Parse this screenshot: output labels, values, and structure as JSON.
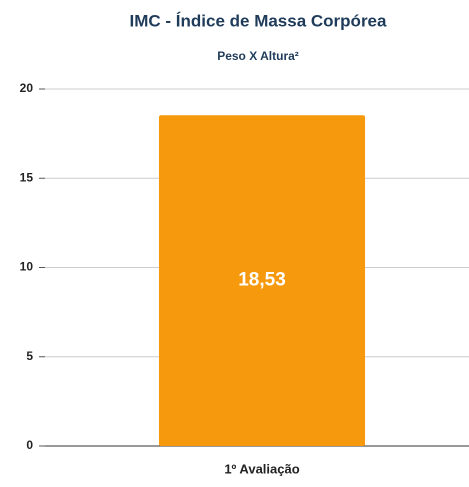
{
  "chart_data": {
    "type": "bar",
    "title": "IMC - Índice de Massa Corpórea",
    "subtitle": "Peso X Altura²",
    "categories": [
      "1º Avaliação"
    ],
    "values": [
      18.53
    ],
    "value_labels": [
      "18,53"
    ],
    "color": "#f7990c",
    "ylim": [
      0,
      20
    ],
    "yticks": [
      0,
      5,
      10,
      15,
      20
    ],
    "grid": true
  }
}
